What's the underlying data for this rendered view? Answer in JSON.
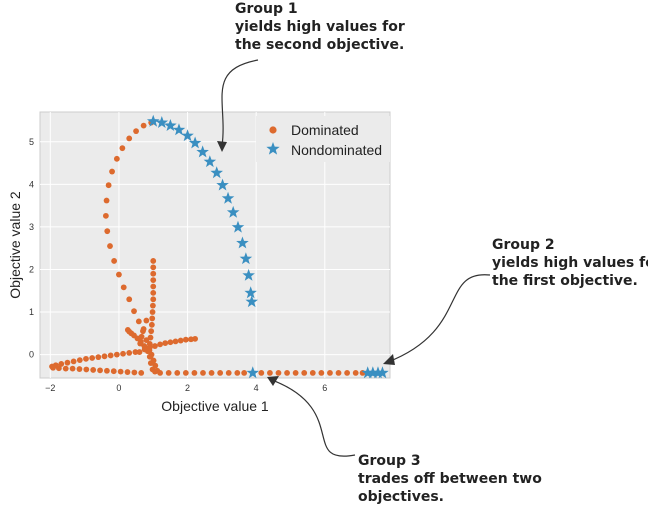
{
  "chart_data": {
    "type": "scatter",
    "title": "",
    "xlabel": "Objective value 1",
    "ylabel": "Objective value 2",
    "xlim": [
      -2.3,
      7.9
    ],
    "ylim": [
      -0.55,
      5.7
    ],
    "xticks": [
      -2,
      0,
      2,
      4,
      6
    ],
    "yticks": [
      0,
      1,
      2,
      3,
      4,
      5
    ],
    "grid": true,
    "legend_position": "top-right",
    "series": [
      {
        "name": "Dominated",
        "marker": "circle",
        "color": "#dd6a2e",
        "points": [
          [
            0.94,
            5.45
          ],
          [
            0.72,
            5.38
          ],
          [
            0.5,
            5.25
          ],
          [
            0.3,
            5.08
          ],
          [
            0.1,
            4.85
          ],
          [
            -0.06,
            4.6
          ],
          [
            -0.2,
            4.3
          ],
          [
            -0.3,
            3.98
          ],
          [
            -0.36,
            3.62
          ],
          [
            -0.38,
            3.26
          ],
          [
            -0.34,
            2.9
          ],
          [
            -0.26,
            2.55
          ],
          [
            -0.14,
            2.2
          ],
          [
            0.0,
            1.88
          ],
          [
            0.14,
            1.58
          ],
          [
            0.3,
            1.3
          ],
          [
            0.44,
            1.02
          ],
          [
            0.58,
            0.78
          ],
          [
            0.7,
            0.55
          ],
          [
            0.8,
            0.34
          ],
          [
            0.88,
            0.16
          ],
          [
            0.95,
            0.0
          ],
          [
            1.01,
            -0.14
          ],
          [
            1.06,
            -0.26
          ],
          [
            1.0,
            2.2
          ],
          [
            1.0,
            2.05
          ],
          [
            1.0,
            1.9
          ],
          [
            1.0,
            1.75
          ],
          [
            1.0,
            1.6
          ],
          [
            1.0,
            1.45
          ],
          [
            1.0,
            1.3
          ],
          [
            0.99,
            1.15
          ],
          [
            0.98,
            1.0
          ],
          [
            0.97,
            0.85
          ],
          [
            0.96,
            0.7
          ],
          [
            0.94,
            0.55
          ],
          [
            0.92,
            0.4
          ],
          [
            0.9,
            0.25
          ],
          [
            0.89,
            0.1
          ],
          [
            0.9,
            -0.05
          ],
          [
            0.93,
            -0.2
          ],
          [
            0.98,
            -0.35
          ],
          [
            1.05,
            -0.4
          ],
          [
            1.12,
            -0.38
          ],
          [
            0.92,
            -0.05
          ],
          [
            0.84,
            0.08
          ],
          [
            0.74,
            0.2
          ],
          [
            0.64,
            0.3
          ],
          [
            0.54,
            0.38
          ],
          [
            0.44,
            0.45
          ],
          [
            0.36,
            0.5
          ],
          [
            0.3,
            0.54
          ],
          [
            0.26,
            0.58
          ],
          [
            0.8,
            0.8
          ],
          [
            0.72,
            0.6
          ],
          [
            0.66,
            0.42
          ],
          [
            0.62,
            0.26
          ],
          [
            0.6,
            0.06
          ],
          [
            0.75,
            0.12
          ],
          [
            0.9,
            0.17
          ],
          [
            1.05,
            0.2
          ],
          [
            1.2,
            0.24
          ],
          [
            1.35,
            0.27
          ],
          [
            1.5,
            0.29
          ],
          [
            1.65,
            0.31
          ],
          [
            1.8,
            0.33
          ],
          [
            1.95,
            0.35
          ],
          [
            2.1,
            0.36
          ],
          [
            2.22,
            0.37
          ],
          [
            0.48,
            0.06
          ],
          [
            0.3,
            0.04
          ],
          [
            0.12,
            0.02
          ],
          [
            -0.06,
            0.0
          ],
          [
            -0.24,
            -0.02
          ],
          [
            -0.42,
            -0.04
          ],
          [
            -0.6,
            -0.06
          ],
          [
            -0.78,
            -0.08
          ],
          [
            -0.96,
            -0.1
          ],
          [
            -1.14,
            -0.13
          ],
          [
            -1.32,
            -0.16
          ],
          [
            -1.5,
            -0.19
          ],
          [
            -1.68,
            -0.22
          ],
          [
            -1.84,
            -0.25
          ],
          [
            -1.95,
            -0.28
          ],
          [
            -1.92,
            -0.31
          ],
          [
            -1.75,
            -0.32
          ],
          [
            -1.55,
            -0.33
          ],
          [
            -1.35,
            -0.33
          ],
          [
            -1.15,
            -0.34
          ],
          [
            -0.95,
            -0.35
          ],
          [
            -0.75,
            -0.36
          ],
          [
            -0.55,
            -0.37
          ],
          [
            -0.35,
            -0.38
          ],
          [
            -0.15,
            -0.39
          ],
          [
            0.05,
            -0.4
          ],
          [
            0.25,
            -0.41
          ],
          [
            0.45,
            -0.42
          ],
          [
            0.65,
            -0.43
          ],
          [
            1.2,
            -0.43
          ],
          [
            1.45,
            -0.43
          ],
          [
            1.7,
            -0.43
          ],
          [
            1.95,
            -0.43
          ],
          [
            2.2,
            -0.43
          ],
          [
            2.45,
            -0.43
          ],
          [
            2.7,
            -0.43
          ],
          [
            2.95,
            -0.43
          ],
          [
            3.2,
            -0.43
          ],
          [
            3.45,
            -0.43
          ],
          [
            3.65,
            -0.43
          ],
          [
            4.15,
            -0.43
          ],
          [
            4.4,
            -0.43
          ],
          [
            4.65,
            -0.43
          ],
          [
            4.9,
            -0.43
          ],
          [
            5.15,
            -0.43
          ],
          [
            5.4,
            -0.43
          ],
          [
            5.65,
            -0.43
          ],
          [
            5.9,
            -0.43
          ],
          [
            6.15,
            -0.43
          ],
          [
            6.4,
            -0.43
          ],
          [
            6.65,
            -0.43
          ],
          [
            6.9,
            -0.43
          ],
          [
            7.1,
            -0.43
          ]
        ]
      },
      {
        "name": "Nondominated",
        "marker": "star",
        "color": "#3a8fc1",
        "points": [
          [
            1.0,
            5.48
          ],
          [
            1.25,
            5.45
          ],
          [
            1.5,
            5.38
          ],
          [
            1.75,
            5.28
          ],
          [
            2.0,
            5.14
          ],
          [
            2.22,
            4.97
          ],
          [
            2.44,
            4.76
          ],
          [
            2.65,
            4.53
          ],
          [
            2.85,
            4.27
          ],
          [
            3.02,
            3.98
          ],
          [
            3.18,
            3.67
          ],
          [
            3.33,
            3.34
          ],
          [
            3.47,
            2.99
          ],
          [
            3.6,
            2.62
          ],
          [
            3.7,
            2.25
          ],
          [
            3.78,
            1.86
          ],
          [
            3.84,
            1.45
          ],
          [
            3.87,
            1.24
          ],
          [
            3.9,
            -0.43
          ],
          [
            7.25,
            -0.43
          ],
          [
            7.4,
            -0.43
          ],
          [
            7.55,
            -0.43
          ],
          [
            7.68,
            -0.43
          ]
        ]
      }
    ],
    "annotations": [
      {
        "lines": [
          "Group 1",
          "yields high values for",
          "the second objective."
        ]
      },
      {
        "lines": [
          "Group 2",
          "yields high values for",
          "the first objective."
        ]
      },
      {
        "lines": [
          "Group 3",
          "trades off between two",
          "objectives."
        ]
      }
    ]
  }
}
